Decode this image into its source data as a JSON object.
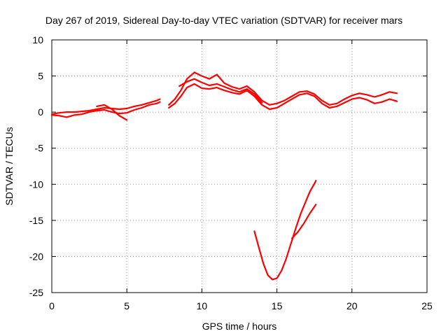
{
  "chart_data": {
    "type": "line",
    "title": "Day 267 of 2019, Sidereal Day-to-day VTEC variation (SDTVAR) for receiver mars",
    "xlabel": "GPS time / hours",
    "ylabel": "SDTVAR / TECUs",
    "xlim": [
      0,
      25
    ],
    "ylim": [
      -25,
      10
    ],
    "xticks": [
      0,
      5,
      10,
      15,
      20,
      25
    ],
    "yticks": [
      10,
      5,
      0,
      -5,
      -10,
      -15,
      -20,
      -25
    ],
    "grid": true,
    "legend": "none",
    "color": "#ff0000",
    "series": [
      {
        "x": [
          0.0,
          0.5,
          1.0,
          1.5,
          2.0,
          2.5,
          3.0,
          3.5,
          4.0,
          4.5,
          5.0,
          5.5,
          6.0,
          6.5,
          7.0,
          7.2
        ],
        "y": [
          -0.3,
          -0.1,
          0.0,
          0.0,
          0.1,
          0.2,
          0.4,
          0.6,
          0.5,
          0.4,
          0.5,
          0.8,
          1.0,
          1.3,
          1.6,
          1.8
        ]
      },
      {
        "x": [
          0.0,
          0.5,
          1.0,
          1.5,
          2.0,
          2.5,
          3.0,
          3.5,
          4.0,
          4.5,
          5.0,
          5.5,
          6.0,
          6.5,
          7.0,
          7.2
        ],
        "y": [
          -0.4,
          -0.5,
          -0.7,
          -0.4,
          -0.3,
          0.0,
          0.2,
          0.3,
          0.0,
          -0.2,
          -0.1,
          0.3,
          0.6,
          1.0,
          1.2,
          1.4
        ]
      },
      {
        "x": [
          3.0,
          3.5,
          4.0,
          4.5,
          5.0
        ],
        "y": [
          0.8,
          1.0,
          0.4,
          -0.5,
          -1.1
        ]
      },
      {
        "x": [
          7.8,
          8.2,
          8.6,
          9.0,
          9.5,
          10.0,
          10.5,
          11.0,
          11.5,
          12.0,
          12.5,
          13.0,
          13.5,
          14.0,
          14.5,
          15.0,
          15.5,
          16.0,
          16.5,
          17.0,
          17.5,
          18.0,
          18.5,
          19.0,
          19.5,
          20.0,
          20.5,
          21.0,
          21.5,
          22.0,
          22.5,
          23.0
        ],
        "y": [
          1.0,
          1.8,
          3.0,
          4.6,
          5.5,
          5.0,
          4.6,
          5.2,
          4.0,
          3.5,
          3.2,
          3.6,
          2.8,
          1.6,
          1.0,
          1.2,
          1.6,
          2.2,
          2.8,
          2.9,
          2.5,
          1.6,
          1.0,
          1.2,
          1.8,
          2.3,
          2.6,
          2.4,
          2.1,
          2.4,
          2.8,
          2.6
        ]
      },
      {
        "x": [
          7.8,
          8.2,
          8.6,
          9.0,
          9.5,
          10.0,
          10.5,
          11.0,
          11.5,
          12.0,
          12.5,
          13.0,
          13.5,
          14.0,
          14.5,
          15.0,
          15.5,
          16.0,
          16.5,
          17.0,
          17.5,
          18.0,
          18.5,
          19.0,
          19.5,
          20.0,
          20.5,
          21.0,
          21.5,
          22.0,
          22.5,
          23.0
        ],
        "y": [
          0.6,
          1.2,
          2.2,
          3.4,
          3.9,
          3.3,
          3.2,
          3.4,
          3.0,
          2.7,
          2.5,
          3.0,
          2.2,
          1.0,
          0.4,
          0.6,
          1.2,
          1.8,
          2.4,
          2.6,
          2.2,
          1.2,
          0.6,
          0.8,
          1.3,
          1.8,
          2.0,
          1.7,
          1.2,
          1.4,
          1.8,
          1.5
        ]
      },
      {
        "x": [
          8.5,
          9.0,
          9.5,
          10.0,
          10.5,
          11.0,
          11.5,
          12.0,
          12.5,
          13.0,
          13.5,
          14.0
        ],
        "y": [
          3.6,
          4.2,
          4.6,
          4.1,
          3.7,
          3.9,
          3.5,
          3.1,
          2.8,
          3.2,
          2.5,
          1.3
        ]
      },
      {
        "x": [
          13.5,
          13.8,
          14.1,
          14.4,
          14.7,
          15.0,
          15.3,
          15.6,
          16.0,
          16.3,
          16.6,
          16.9,
          17.2,
          17.5,
          17.6
        ],
        "y": [
          -16.5,
          -18.8,
          -21.0,
          -22.6,
          -23.2,
          -23.0,
          -22.0,
          -20.4,
          -17.8,
          -15.8,
          -14.0,
          -12.5,
          -11.0,
          -9.9,
          -9.5
        ]
      },
      {
        "x": [
          16.0,
          16.4,
          16.8,
          17.2,
          17.6
        ],
        "y": [
          -17.5,
          -16.6,
          -15.4,
          -14.0,
          -12.8
        ]
      }
    ]
  }
}
